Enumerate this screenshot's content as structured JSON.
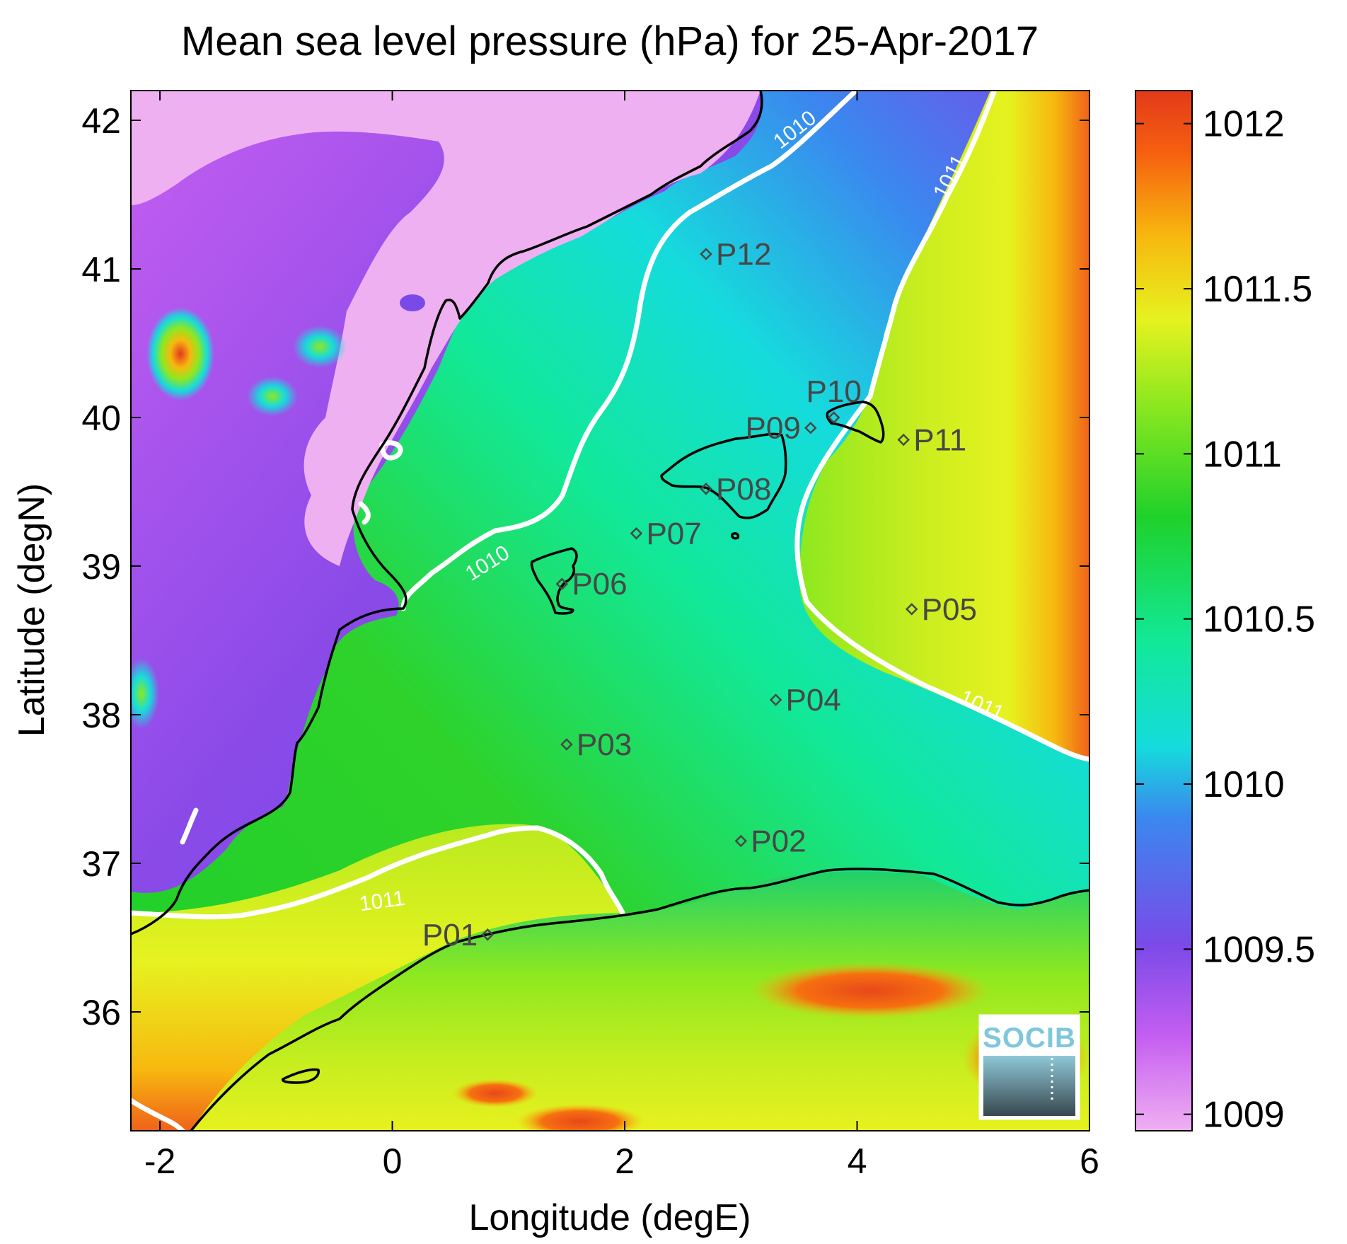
{
  "title": "Mean sea level pressure (hPa) for 25-Apr-2017",
  "x_axis": {
    "label": "Longitude (degE)",
    "range": [
      -2.25,
      6
    ],
    "ticks": [
      {
        "value": -2,
        "label": "-2"
      },
      {
        "value": 0,
        "label": "0"
      },
      {
        "value": 2,
        "label": "2"
      },
      {
        "value": 4,
        "label": "4"
      },
      {
        "value": 6,
        "label": "6"
      }
    ]
  },
  "y_axis": {
    "label": "Latitude (degN)",
    "range": [
      35.2,
      42.2
    ],
    "ticks": [
      {
        "value": 36,
        "label": "36"
      },
      {
        "value": 37,
        "label": "37"
      },
      {
        "value": 38,
        "label": "38"
      },
      {
        "value": 39,
        "label": "39"
      },
      {
        "value": 40,
        "label": "40"
      },
      {
        "value": 41,
        "label": "41"
      },
      {
        "value": 42,
        "label": "42"
      }
    ]
  },
  "colorbar": {
    "range": [
      1008.95,
      1012.1
    ],
    "colormap": [
      "#efb0f2",
      "#c55ef1",
      "#7a4ae8",
      "#3b87ef",
      "#15dcdc",
      "#12e898",
      "#1fd12a",
      "#8ee81f",
      "#e6f21f",
      "#f7b80f",
      "#f6600f",
      "#e23a1a"
    ],
    "ticks": [
      {
        "value": 1009,
        "label": "1009"
      },
      {
        "value": 1009.5,
        "label": "1009.5"
      },
      {
        "value": 1010,
        "label": "1010"
      },
      {
        "value": 1010.5,
        "label": "1010.5"
      },
      {
        "value": 1011,
        "label": "1011"
      },
      {
        "value": 1011.5,
        "label": "1011.5"
      },
      {
        "value": 1012,
        "label": "1012"
      }
    ]
  },
  "stations": [
    {
      "id": "P01",
      "lon": 0.82,
      "lat": 36.52,
      "label": "P01",
      "label_side": "left"
    },
    {
      "id": "P02",
      "lon": 3.0,
      "lat": 37.15,
      "label": "P02",
      "label_side": "right"
    },
    {
      "id": "P03",
      "lon": 1.5,
      "lat": 37.8,
      "label": "P03",
      "label_side": "right"
    },
    {
      "id": "P04",
      "lon": 3.3,
      "lat": 38.1,
      "label": "P04",
      "label_side": "right"
    },
    {
      "id": "P05",
      "lon": 4.47,
      "lat": 38.71,
      "label": "P05",
      "label_side": "right"
    },
    {
      "id": "P06",
      "lon": 1.46,
      "lat": 38.88,
      "label": "P06",
      "label_side": "right"
    },
    {
      "id": "P07",
      "lon": 2.1,
      "lat": 39.22,
      "label": "P07",
      "label_side": "right"
    },
    {
      "id": "P08",
      "lon": 2.7,
      "lat": 39.52,
      "label": "P08",
      "label_side": "right"
    },
    {
      "id": "P09",
      "lon": 3.6,
      "lat": 39.93,
      "label": "P09",
      "label_side": "left"
    },
    {
      "id": "P10",
      "lon": 3.8,
      "lat": 40.0,
      "label": "P10",
      "label_side": "above"
    },
    {
      "id": "P11",
      "lon": 4.4,
      "lat": 39.85,
      "label": "P11",
      "label_side": "right"
    },
    {
      "id": "P12",
      "lon": 2.7,
      "lat": 41.1,
      "label": "P12",
      "label_side": "right"
    }
  ],
  "contour_labels": [
    {
      "text": "1010",
      "lon": 3.5,
      "lat": 41.9,
      "angle": -38
    },
    {
      "text": "1010",
      "lon": 0.85,
      "lat": 38.98,
      "angle": -32
    },
    {
      "text": "1011",
      "lon": 4.85,
      "lat": 41.6,
      "angle": -62
    },
    {
      "text": "1011",
      "lon": 5.05,
      "lat": 38.02,
      "angle": 24
    },
    {
      "text": "1011",
      "lon": -0.08,
      "lat": 36.7,
      "angle": -8
    }
  ],
  "logo": {
    "text": "SOCIB"
  }
}
